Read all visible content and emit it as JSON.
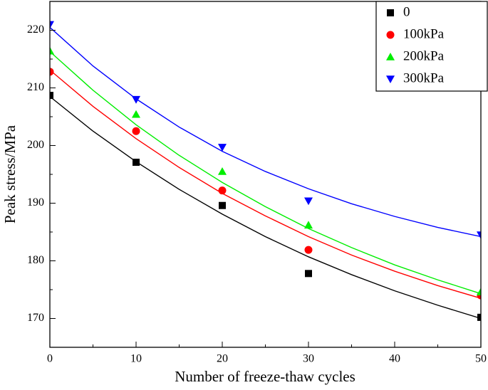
{
  "chart_data": {
    "type": "scatter",
    "xlabel": "Number of freeze-thaw cycles",
    "ylabel": "Peak stress/MPa",
    "x": [
      0,
      10,
      20,
      30,
      50
    ],
    "fit_x": [
      0,
      5,
      10,
      15,
      20,
      25,
      30,
      35,
      40,
      45,
      50
    ],
    "series": [
      {
        "name": "0",
        "color": "#000000",
        "marker": "square",
        "values": [
          208.7,
          197.1,
          189.6,
          177.8,
          170.2
        ],
        "fit_values": [
          208.5,
          202.5,
          197.2,
          192.4,
          188.1,
          184.2,
          180.7,
          177.6,
          174.8,
          172.3,
          170.0
        ]
      },
      {
        "name": "100kPa",
        "color": "#ff0000",
        "marker": "circle",
        "values": [
          212.8,
          202.5,
          192.2,
          181.9,
          174.0
        ],
        "fit_values": [
          213.1,
          206.8,
          201.2,
          196.2,
          191.7,
          187.8,
          184.2,
          181.0,
          178.2,
          175.7,
          173.5
        ]
      },
      {
        "name": "200kPa",
        "color": "#00ee00",
        "marker": "triangle-up",
        "values": [
          216.4,
          205.4,
          195.5,
          186.2,
          174.6
        ],
        "fit_values": [
          216.3,
          209.6,
          203.6,
          198.3,
          193.6,
          189.4,
          185.6,
          182.3,
          179.3,
          176.7,
          174.3
        ]
      },
      {
        "name": "300kPa",
        "color": "#0000ff",
        "marker": "triangle-down",
        "values": [
          221.0,
          208.0,
          199.7,
          190.4,
          184.5
        ],
        "fit_values": [
          220.5,
          213.8,
          208.1,
          203.2,
          199.0,
          195.5,
          192.5,
          189.9,
          187.7,
          185.8,
          184.2
        ]
      }
    ],
    "xlim": [
      0,
      50
    ],
    "xticks": [
      0,
      10,
      20,
      30,
      40,
      50
    ],
    "xminorticks": [
      5,
      15,
      25,
      35,
      45
    ],
    "ylim": [
      165,
      225
    ],
    "yticks": [
      170,
      180,
      190,
      200,
      210,
      220
    ],
    "yminorticks": [
      175,
      185,
      195,
      205,
      215
    ],
    "legend": "upper right"
  }
}
